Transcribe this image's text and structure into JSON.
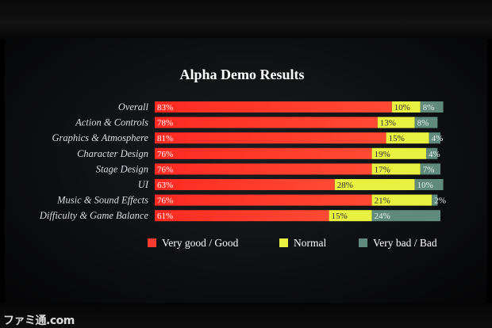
{
  "chart_data": {
    "type": "bar",
    "title": "Alpha Demo Results",
    "categories": [
      "Overall",
      "Action & Controls",
      "Graphics & Atmosphere",
      "Character Design",
      "Stage Design",
      "UI",
      "Music & Sound Effects",
      "Difficulty & Game Balance"
    ],
    "series": [
      {
        "name": "Very good / Good",
        "values": [
          83,
          78,
          81,
          76,
          76,
          63,
          76,
          61
        ],
        "color": "#ff3b2f"
      },
      {
        "name": "Normal",
        "values": [
          10,
          13,
          15,
          19,
          17,
          28,
          21,
          15
        ],
        "color": "#e8f040"
      },
      {
        "name": "Very bad / Bad",
        "values": [
          8,
          8,
          4,
          4,
          7,
          10,
          2,
          24
        ],
        "color": "#5f8a7c"
      }
    ],
    "stacked": true,
    "orientation": "horizontal",
    "xlim": [
      0,
      100
    ],
    "grid": false,
    "legend_position": "bottom"
  },
  "watermark": "ファミ通.com"
}
